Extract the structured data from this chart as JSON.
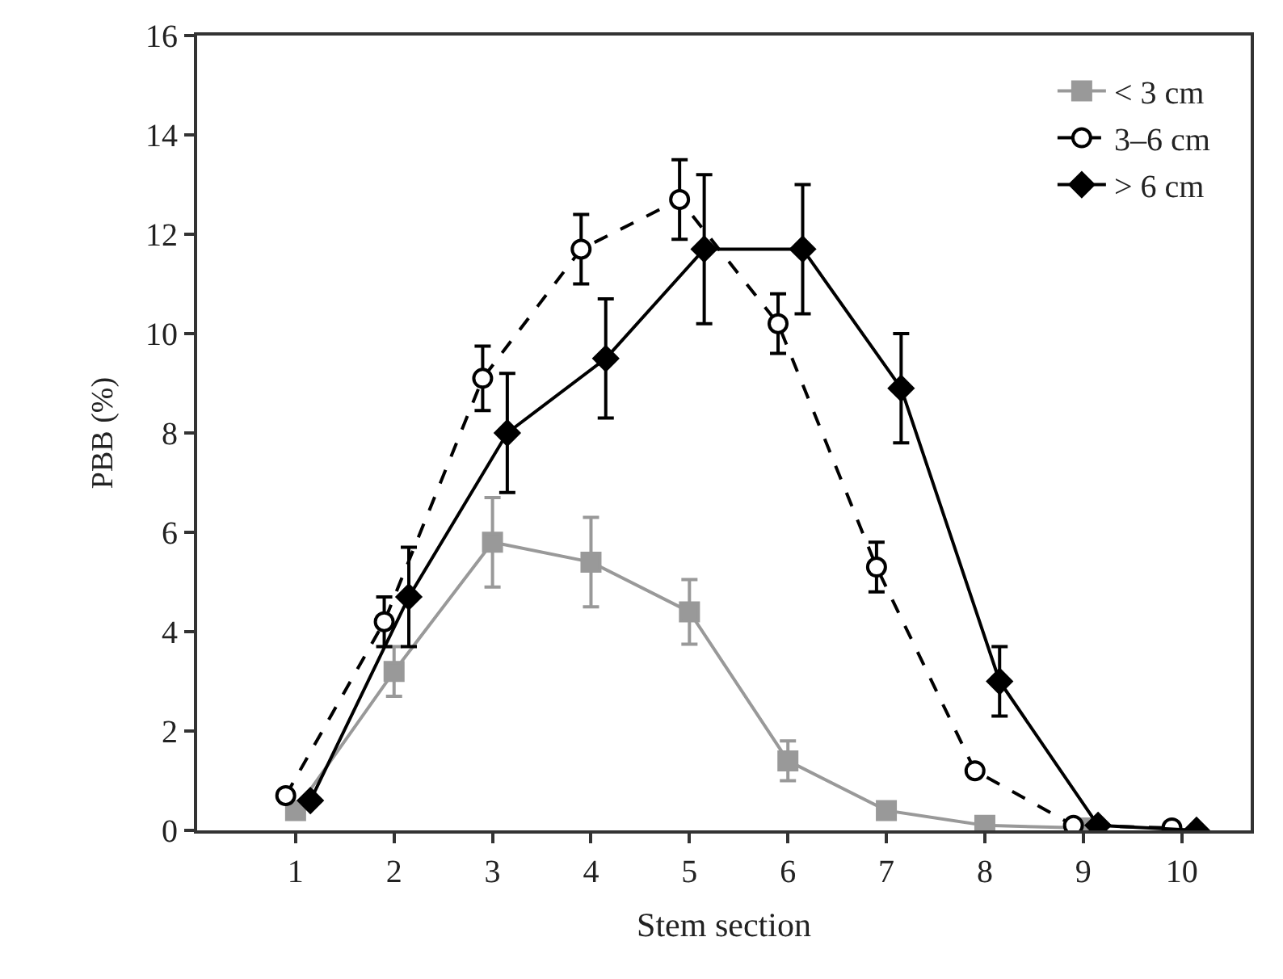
{
  "chart_data": {
    "type": "line",
    "xlabel": "Stem section",
    "ylabel": "PBB (%)",
    "xlim": [
      0,
      10.7
    ],
    "xticks": [
      1,
      2,
      3,
      4,
      5,
      6,
      7,
      8,
      9,
      10
    ],
    "ylim": [
      0,
      16
    ],
    "yticks": [
      0,
      2,
      4,
      6,
      8,
      10,
      12,
      14,
      16
    ],
    "legend": "top right",
    "series": [
      {
        "name": "< 3 cm",
        "color": "#999999",
        "marker": "square",
        "line_style": "solid",
        "x": [
          1,
          2,
          3,
          4,
          5,
          6,
          7,
          8,
          9
        ],
        "values": [
          0.4,
          3.2,
          5.8,
          5.4,
          4.4,
          1.4,
          0.4,
          0.1,
          0.05
        ],
        "errors": [
          null,
          0.5,
          0.9,
          0.9,
          0.65,
          0.4,
          null,
          null,
          null
        ]
      },
      {
        "name": "3–6 cm",
        "color": "#000000",
        "marker": "circle",
        "line_style": "dashed",
        "x": [
          0.9,
          1.9,
          2.9,
          3.9,
          4.9,
          5.9,
          6.9,
          7.9,
          8.9,
          9.9
        ],
        "values": [
          0.7,
          4.2,
          9.1,
          11.7,
          12.7,
          10.2,
          5.3,
          1.2,
          0.1,
          0.05
        ],
        "errors": [
          null,
          0.5,
          0.65,
          0.7,
          0.8,
          0.6,
          0.5,
          null,
          null,
          null
        ]
      },
      {
        "name": "> 6 cm",
        "color": "#000000",
        "marker": "diamond",
        "line_style": "solid",
        "x": [
          1.15,
          2.15,
          3.15,
          4.15,
          5.15,
          6.15,
          7.15,
          8.15,
          9.15,
          10.15
        ],
        "values": [
          0.6,
          4.7,
          8.0,
          9.5,
          11.7,
          11.7,
          8.9,
          3.0,
          0.1,
          0.0
        ],
        "errors": [
          null,
          1.0,
          1.2,
          1.2,
          1.5,
          1.3,
          1.1,
          0.7,
          null,
          null
        ]
      }
    ]
  }
}
